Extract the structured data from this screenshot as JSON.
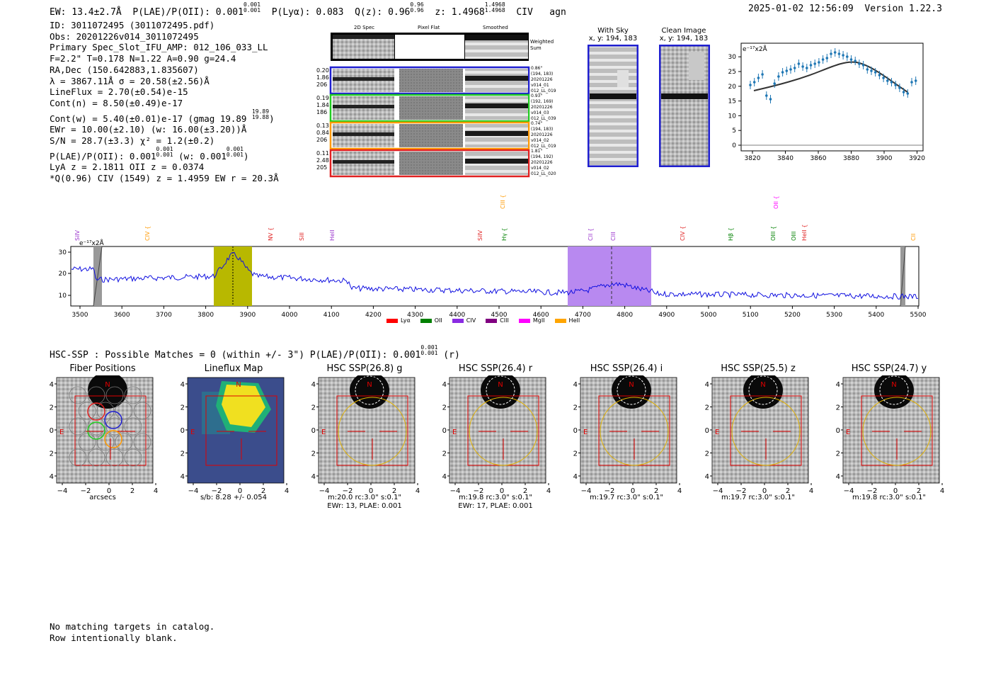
{
  "header": {
    "ew": "EW: 13.4±2.7Å",
    "plae_label": "P(LAE)/P(OII): 0.001",
    "plae_sup": "0.001",
    "plae_sub": "0.001",
    "plya": "P(Lyα): 0.083",
    "qz_label": "Q(z): 0.96",
    "qz_sup": "0.96",
    "qz_sub": "0.96",
    "z_label": "z: 1.4968",
    "z_sup": "1.4968",
    "z_sub": "1.4968",
    "line": "CIV",
    "cls": "agn",
    "timestamp": "2025-01-02 12:56:09",
    "version": "Version 1.22.3"
  },
  "info": {
    "l1": "ID: 3011072495 (3011072495.pdf)",
    "l2": "Obs: 20201226v014_3011072495",
    "l3": "Primary Spec_Slot_IFU_AMP: 012_106_033_LL",
    "l4": "F=2.2\"  T=0.178  N=1.22  A=0.90  g=24.4",
    "l5": "RA,Dec (150.642883,1.835607)",
    "l6": "λ = 3867.11Å  σ = 20.58(±2.56)Å",
    "l7": "LineFlux = 2.70(±0.54)e-15",
    "l8": "Cont(n) = 8.50(±0.49)e-17",
    "l9a": "Cont(w) = 5.40(±0.01)e-17 (gmag 19.89",
    "l9sup": "19.89",
    "l9sub": "19.88",
    "l9b": ")",
    "l10": "EWr = 10.00(±2.10) (w: 16.00(±3.20))Å",
    "l11": "S/N = 28.7(±3.3)  χ² = 1.2(±0.2)",
    "l12a": "P(LAE)/P(OII): 0.001",
    "l12sup1": "0.001",
    "l12sub1": "0.001",
    "l12b": " (w: 0.001",
    "l12sup2": "0.001",
    "l12sub2": "0.001",
    "l12c": ")",
    "l13": "LyA z = 2.1811  OII z = 0.0374",
    "l14": "*Q(0.96) CIV (1549) z = 1.4959  EW r = 20.3Å"
  },
  "cutouts": {
    "col1": "2D Spec",
    "col2": "Pixel Flat",
    "col3": "Smoothed",
    "weighted": "Weighted",
    "sum": "Sum",
    "rows": [
      {
        "left": [
          "0.20",
          "1.86",
          "206"
        ],
        "right": [
          "0.86\"",
          "(194, 183)",
          "20201226",
          "v014_01",
          "012_LL_019"
        ],
        "color": "#1f1fd0"
      },
      {
        "left": [
          "0.19",
          "1.84",
          "186"
        ],
        "right": [
          "0.93\"",
          "(192, 169)",
          "20201226",
          "v014_03",
          "012_LL_039"
        ],
        "color": "#22cc22"
      },
      {
        "left": [
          "0.13",
          "0.84",
          "206"
        ],
        "right": [
          "0.74\"",
          "(194, 183)",
          "20201226",
          "v014_02",
          "012_LL_019"
        ],
        "color": "#ff9900"
      },
      {
        "left": [
          "0.11",
          "2.48",
          "205"
        ],
        "right": [
          "1.81\"",
          "(194, 192)",
          "20201226",
          "v014_02",
          "012_LL_020"
        ],
        "color": "#e02020"
      }
    ]
  },
  "withsky": {
    "title": "With Sky",
    "coords": "x, y: 194, 183"
  },
  "clean": {
    "title": "Clean Image",
    "coords": "x, y: 194, 183"
  },
  "zoom_plot": {
    "unit": "e⁻¹⁷x2Å",
    "xticks": [
      "3820",
      "3840",
      "3860",
      "3880",
      "3900",
      "3920"
    ],
    "yticks": [
      "0",
      "5",
      "10",
      "15",
      "20",
      "25",
      "30"
    ]
  },
  "spectrum": {
    "unit": "e⁻¹⁷x2Å",
    "xticks": [
      "3500",
      "3600",
      "3700",
      "3800",
      "3900",
      "4000",
      "4100",
      "4200",
      "4300",
      "4400",
      "4500",
      "4600",
      "4700",
      "4800",
      "4900",
      "5000",
      "5100",
      "5200",
      "5300",
      "5400",
      "5500"
    ],
    "yticks": [
      "10",
      "20",
      "30"
    ],
    "line_labels": [
      {
        "t": "SiIV",
        "c": "#9932cc",
        "x": 105,
        "y": 340
      },
      {
        "t": "CIV {",
        "c": "#ff9900",
        "x": 204,
        "y": 340
      },
      {
        "t": "NV {",
        "c": "#e02020",
        "x": 378,
        "y": 340
      },
      {
        "t": "SiII",
        "c": "#e02020",
        "x": 422,
        "y": 340
      },
      {
        "t": "HeII",
        "c": "#9932cc",
        "x": 465,
        "y": 340
      },
      {
        "t": "SiIV",
        "c": "#e02020",
        "x": 674,
        "y": 340
      },
      {
        "t": "CIII {",
        "c": "#ff9900",
        "x": 706,
        "y": 295
      },
      {
        "t": "Hγ {",
        "c": "#008000",
        "x": 708,
        "y": 340
      },
      {
        "t": "CII {",
        "c": "#9932cc",
        "x": 830,
        "y": 340
      },
      {
        "t": "CIII",
        "c": "#9932cc",
        "x": 862,
        "y": 340
      },
      {
        "t": "CIV {",
        "c": "#e02020",
        "x": 960,
        "y": 340
      },
      {
        "t": "Hβ {",
        "c": "#008000",
        "x": 1028,
        "y": 340
      },
      {
        "t": "OII {",
        "c": "#ff00ff",
        "x": 1092,
        "y": 295
      },
      {
        "t": "OIII {",
        "c": "#008000",
        "x": 1088,
        "y": 340
      },
      {
        "t": "OIII",
        "c": "#008000",
        "x": 1117,
        "y": 340
      },
      {
        "t": "HeII {",
        "c": "#e02020",
        "x": 1132,
        "y": 340
      },
      {
        "t": "CII",
        "c": "#ff9900",
        "x": 1286,
        "y": 340
      }
    ],
    "legend": [
      {
        "name": "Lyα",
        "color": "#ff0000"
      },
      {
        "name": "OII",
        "color": "#008000"
      },
      {
        "name": "CIV",
        "color": "#8a2be2"
      },
      {
        "name": "CIII",
        "color": "#800080"
      },
      {
        "name": "MgII",
        "color": "#ff00ff"
      },
      {
        "name": "HeII",
        "color": "#ffa500"
      }
    ]
  },
  "hsc": {
    "header_a": "HSC-SSP : Possible Matches = 0 (within +/- 3\")  P(LAE)/P(OII): 0.001",
    "header_sup": "0.001",
    "header_sub": "0.001",
    "header_b": " (r)",
    "panels": [
      {
        "title": "Fiber Positions",
        "cap1": "arcsecs",
        "cap2": ""
      },
      {
        "title": "Lineflux Map",
        "cap1": "s/b: 8.28 +/- 0.054",
        "cap2": ""
      },
      {
        "title": "HSC SSP(26.8) g",
        "cap1": "m:20.0 rc:3.0\"  s:0.1\"",
        "cap2": "EWr: 13, PLAE: 0.001"
      },
      {
        "title": "HSC SSP(26.4) r",
        "cap1": "m:19.8 rc:3.0\"  s:0.1\"",
        "cap2": "EWr: 17, PLAE: 0.001"
      },
      {
        "title": "HSC SSP(26.4) i",
        "cap1": "m:19.7 rc:3.0\"  s:0.1\"",
        "cap2": ""
      },
      {
        "title": "HSC SSP(25.5) z",
        "cap1": "m:19.7 rc:3.0\"  s:0.1\"",
        "cap2": ""
      },
      {
        "title": "HSC SSP(24.7) y",
        "cap1": "m:19.8 rc:3.0\"  s:0.1\"",
        "cap2": ""
      }
    ],
    "xticks": [
      "−4",
      "−2",
      "0",
      "2",
      "4"
    ],
    "yticks": [
      "4",
      "2",
      "0",
      "−2",
      "−4"
    ],
    "n": "N",
    "e": "E"
  },
  "footer": {
    "l1": "No matching targets in catalog.",
    "l2": "Row intentionally blank."
  }
}
